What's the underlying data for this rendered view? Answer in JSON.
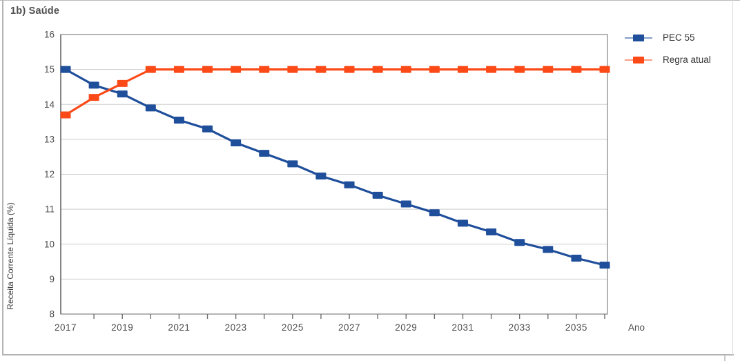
{
  "figure": {
    "panel_label": "1b) Saúde"
  },
  "chart_data": {
    "type": "line",
    "title": "1b) Saúde",
    "xlabel": "Ano",
    "ylabel": "Receita Corrente Líquida (%)",
    "ylim": [
      8,
      16
    ],
    "y_ticks": [
      8,
      9,
      10,
      11,
      12,
      13,
      14,
      15,
      16
    ],
    "x": [
      2017,
      2018,
      2019,
      2020,
      2021,
      2022,
      2023,
      2024,
      2025,
      2026,
      2027,
      2028,
      2029,
      2030,
      2031,
      2032,
      2033,
      2034,
      2035,
      2036
    ],
    "x_labeled_ticks": [
      2017,
      2019,
      2021,
      2023,
      2025,
      2027,
      2029,
      2031,
      2033,
      2035
    ],
    "grid": "horizontal-gridlines-on",
    "legend_position": "outside-top-right",
    "colors": {
      "pec55": "#1f4e9b",
      "regra_atual": "#fb4a17",
      "gridline": "#cdcdcd",
      "plot_border": "#8c8c8c",
      "tick_text": "#4d4d4d"
    },
    "series": [
      {
        "name": "PEC 55",
        "color": "#1f4e9b",
        "marker": "square",
        "values": [
          15.0,
          14.55,
          14.3,
          13.9,
          13.55,
          13.3,
          12.9,
          12.6,
          12.3,
          11.95,
          11.7,
          11.4,
          11.15,
          10.9,
          10.6,
          10.35,
          10.05,
          9.85,
          9.6,
          9.4
        ]
      },
      {
        "name": "Regra atual",
        "color": "#fb4a17",
        "marker": "square",
        "values": [
          13.7,
          14.2,
          14.6,
          15.0,
          15.0,
          15.0,
          15.0,
          15.0,
          15.0,
          15.0,
          15.0,
          15.0,
          15.0,
          15.0,
          15.0,
          15.0,
          15.0,
          15.0,
          15.0,
          15.0
        ]
      }
    ]
  }
}
